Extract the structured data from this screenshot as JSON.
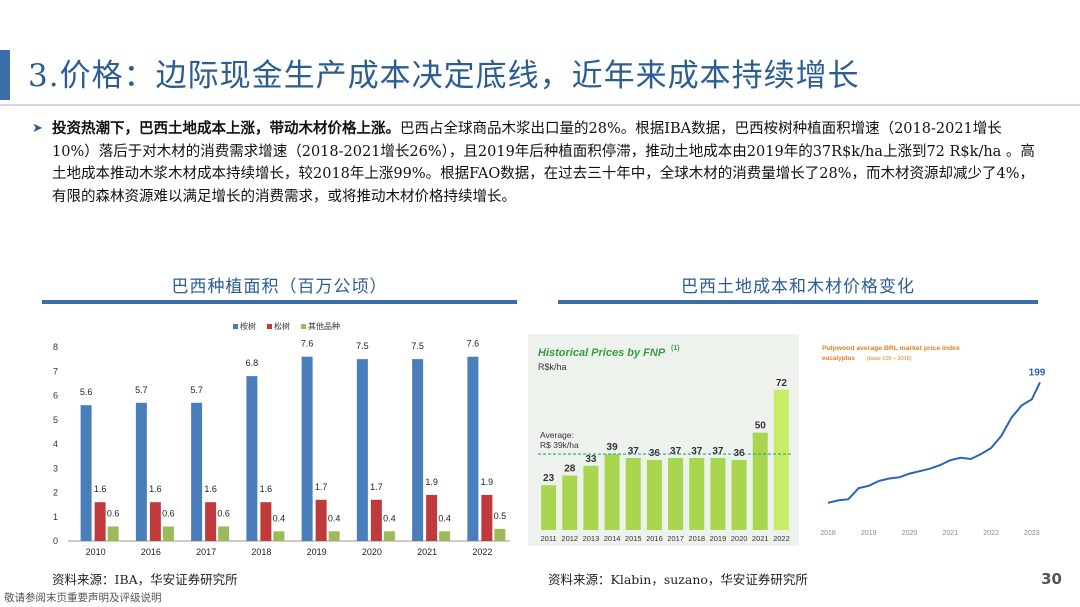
{
  "title": "3.价格：边际现金生产成本决定底线，近年来成本持续增长",
  "bullet_icon": "triangle-right-icon",
  "body": {
    "lead": "投资热潮下，巴西土地成本上涨，带动木材价格上涨。",
    "text": "巴西占全球商品木浆出口量的28%。根据IBA数据，巴西桉树种植面积增速（2018-2021增长10%）落后于对木材的消费需求增速（2018-2021增长26%），且2019年后种植面积停滞，推动土地成本由2019年的37R$k/ha上涨到72 R$k/ha 。高土地成本推动木浆木材成本持续增长，较2018年上涨99%。根据FAO数据，在过去三十年中，全球木材的消费量增长了28%，而木材资源却减少了4%，有限的森林资源难以满足增长的消费需求，或将推动木材价格持续增长。"
  },
  "left_section": {
    "title": "巴西种植面积（百万公顷）",
    "source": "资料来源：IBA，华安证券研究所"
  },
  "right_section": {
    "title": "巴西土地成本和木材价格变化",
    "source": "资料来源：Klabin，suzano，华安证券研究所"
  },
  "page_number": "30",
  "footer": "敬请参阅末页重要声明及评级说明",
  "chart_data": [
    {
      "type": "bar",
      "categories": [
        "2010",
        "2016",
        "2017",
        "2018",
        "2019",
        "2020",
        "2021",
        "2022"
      ],
      "series": [
        {
          "name": "桉树",
          "color": "#4a7ebb",
          "values": [
            5.6,
            5.7,
            5.7,
            6.8,
            7.6,
            7.5,
            7.5,
            7.6
          ]
        },
        {
          "name": "松树",
          "color": "#c0393b",
          "values": [
            1.6,
            1.6,
            1.6,
            1.6,
            1.7,
            1.7,
            1.9,
            1.9
          ]
        },
        {
          "name": "其他品种",
          "color": "#9bbb59",
          "values": [
            0.6,
            0.6,
            0.6,
            0.4,
            0.4,
            0.4,
            0.4,
            0.5
          ]
        }
      ],
      "ylim": [
        0,
        8
      ],
      "yticks": [
        0,
        1,
        2,
        3,
        4,
        5,
        6,
        7,
        8
      ],
      "legend": "top"
    },
    {
      "type": "bar",
      "title": "Historical Prices by FNP",
      "title_superscript": "(1)",
      "ylabel": "R$k/ha",
      "categories": [
        "2011",
        "2012",
        "2013",
        "2014",
        "2015",
        "2016",
        "2017",
        "2018",
        "2019",
        "2020",
        "2021",
        "2022"
      ],
      "values": [
        23,
        28,
        33,
        39,
        37,
        36,
        37,
        37,
        37,
        36,
        50,
        72
      ],
      "average_label": "Average:",
      "average_value_label": "R$ 39k/ha",
      "average": 39,
      "colors": {
        "bar": "#a8d64f",
        "last_bar": "#c9ec66",
        "text": "#333333",
        "title": "#3a9a47",
        "average_line": "#2aa198"
      }
    },
    {
      "type": "line",
      "title": "Pulpwood average BRL market price index",
      "subtitle": "eucalyptus",
      "subtitle_note": "(base 100 – 2018)",
      "x_ticks": [
        "2018",
        "2019",
        "2020",
        "2021",
        "2022",
        "2023"
      ],
      "x": [
        2018.0,
        2018.25,
        2018.5,
        2018.75,
        2019.0,
        2019.25,
        2019.5,
        2019.75,
        2020.0,
        2020.25,
        2020.5,
        2020.75,
        2021.0,
        2021.25,
        2021.5,
        2021.75,
        2022.0,
        2022.25,
        2022.5,
        2022.75,
        2023.0,
        2023.2
      ],
      "values": [
        100,
        102,
        103,
        112,
        114,
        118,
        120,
        121,
        124,
        126,
        128,
        131,
        135,
        137,
        136,
        140,
        145,
        155,
        170,
        180,
        185,
        199
      ],
      "end_label": "199",
      "colors": {
        "line": "#2d63b5",
        "title": "#e67e22"
      }
    }
  ]
}
